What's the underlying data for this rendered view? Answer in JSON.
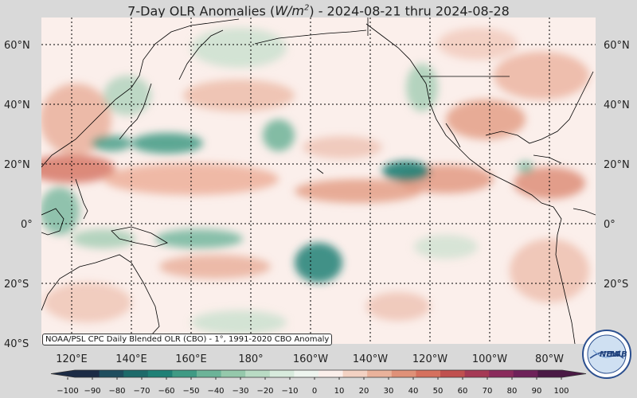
{
  "title": {
    "prefix": "7-Day OLR Anomalies (",
    "unit_base": "W/m",
    "unit_exp": "2",
    "suffix": ") - 2024-08-21 thru 2024-08-28"
  },
  "map": {
    "projection": "equirectangular",
    "lon_range": [
      "100°E",
      "140°W"
    ],
    "lat_range": [
      "40°S",
      "68°N"
    ],
    "lat_labels": [
      "60°N",
      "40°N",
      "20°N",
      "0°",
      "20°S",
      "40°S"
    ],
    "lon_labels": [
      "120°E",
      "140°E",
      "160°E",
      "180°",
      "160°W",
      "140°W",
      "120°W",
      "100°W",
      "80°W"
    ],
    "gridlines": "dotted",
    "anomaly_features": [
      {
        "region": "Tropical western Pacific near 20°N",
        "sign": "positive"
      },
      {
        "region": "Eastern Pacific near 15°N",
        "sign": "negative"
      },
      {
        "region": "Western Pacific 25–35°N",
        "sign": "negative"
      },
      {
        "region": "South Pacific 10–20°S near 160°W",
        "sign": "negative"
      },
      {
        "region": "Central America / Caribbean",
        "sign": "positive"
      },
      {
        "region": "Mexico / western US",
        "sign": "positive"
      }
    ]
  },
  "source_note": "NOAA/PSL CPC Daily Blended OLR (CBO) - 1°, 1991-2020 CBO Anomaly",
  "colorbar": {
    "ticks": [
      "−100",
      "−90",
      "−80",
      "−70",
      "−60",
      "−50",
      "−40",
      "−30",
      "−20",
      "−10",
      "0",
      "10",
      "20",
      "30",
      "40",
      "50",
      "60",
      "70",
      "80",
      "90",
      "100"
    ],
    "colors": [
      "#1c2b45",
      "#1f4d5e",
      "#1d6a6a",
      "#1f8076",
      "#3f9a84",
      "#6cb398",
      "#95c8ab",
      "#b9dbc4",
      "#d8ebdd",
      "#eef5ef",
      "#fbefeb",
      "#f3d2c3",
      "#e9b29b",
      "#df9178",
      "#d5715e",
      "#c0504f",
      "#a53a55",
      "#8a2b5c",
      "#6e2259",
      "#4a1a45"
    ]
  },
  "logo": {
    "text_left": "NEW",
    "text_right": "LAB"
  }
}
